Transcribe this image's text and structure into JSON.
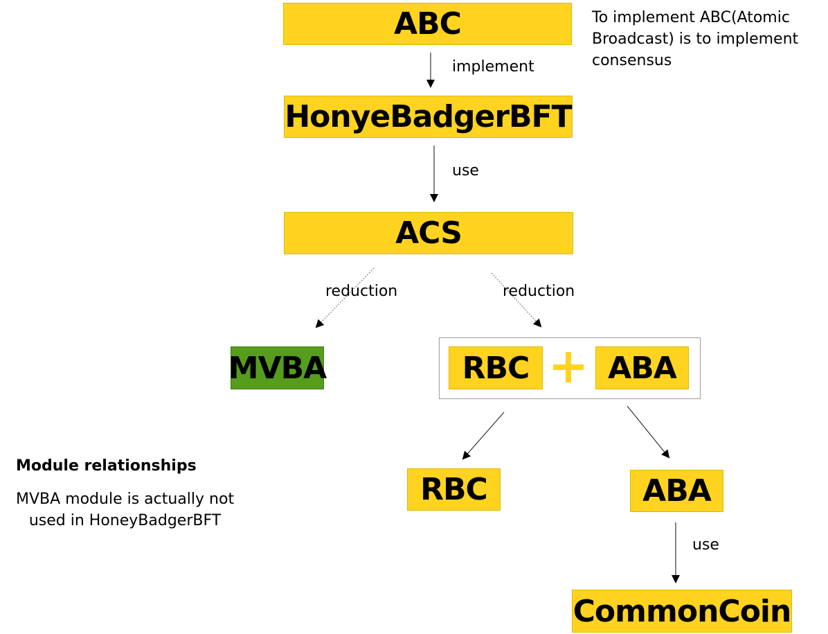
{
  "nodes": {
    "abc": "ABC",
    "honeybadger": "HonyeBadgerBFT",
    "acs": "ACS",
    "mvba": "MVBA",
    "rbc_group": "RBC",
    "aba_group": "ABA",
    "rbc": "RBC",
    "aba": "ABA",
    "commoncoin": "CommonCoin"
  },
  "edges": {
    "abc_to_hb": "implement",
    "hb_to_acs": "use",
    "acs_to_mvba": "reduction",
    "acs_to_group": "reduction",
    "aba_to_coin": "use"
  },
  "notes": {
    "abc_line1": "To implement ABC(Atomic",
    "abc_line2": "Broadcast) is to implement",
    "abc_line3": "consensus",
    "legend_title": "Module relationships",
    "legend_line1": "MVBA module is actually not",
    "legend_line2": "used in HoneyBadgerBFT"
  },
  "colors": {
    "box_fill": "#ffd320",
    "mvba_fill": "#579d1c"
  }
}
